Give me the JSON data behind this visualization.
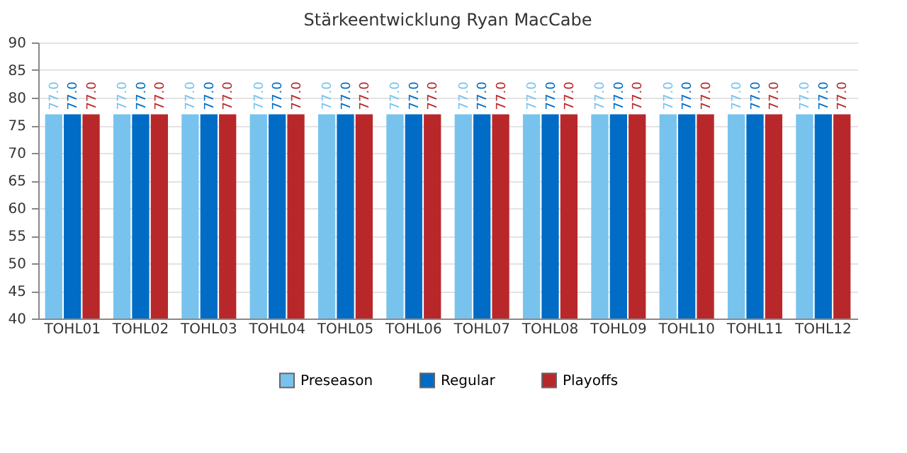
{
  "chart_data": {
    "type": "bar",
    "title": "Stärkeentwicklung Ryan MacCabe",
    "categories": [
      "TOHL01",
      "TOHL02",
      "TOHL03",
      "TOHL04",
      "TOHL05",
      "TOHL06",
      "TOHL07",
      "TOHL08",
      "TOHL09",
      "TOHL10",
      "TOHL11",
      "TOHL12"
    ],
    "series": [
      {
        "name": "Preseason",
        "color": "#77c3ee",
        "values": [
          77,
          77,
          77,
          77,
          77,
          77,
          77,
          77,
          77,
          77,
          77,
          77
        ],
        "value_labels": [
          "77.0",
          "77.0",
          "77.0",
          "77.0",
          "77.0",
          "77.0",
          "77.0",
          "77.0",
          "77.0",
          "77.0",
          "77.0",
          "77.0"
        ]
      },
      {
        "name": "Regular",
        "color": "#006cc6",
        "values": [
          77,
          77,
          77,
          77,
          77,
          77,
          77,
          77,
          77,
          77,
          77,
          77
        ],
        "value_labels": [
          "77.0",
          "77.0",
          "77.0",
          "77.0",
          "77.0",
          "77.0",
          "77.0",
          "77.0",
          "77.0",
          "77.0",
          "77.0",
          "77.0"
        ]
      },
      {
        "name": "Playoffs",
        "color": "#b8282a",
        "values": [
          77,
          77,
          77,
          77,
          77,
          77,
          77,
          77,
          77,
          77,
          77,
          77
        ],
        "value_labels": [
          "77.0",
          "77.0",
          "77.0",
          "77.0",
          "77.0",
          "77.0",
          "77.0",
          "77.0",
          "77.0",
          "77.0",
          "77.0",
          "77.0"
        ]
      }
    ],
    "ylim": [
      40,
      90
    ],
    "yticks": [
      40,
      45,
      50,
      55,
      60,
      65,
      70,
      75,
      80,
      85,
      90
    ],
    "grid": "y",
    "legend": "bottom"
  }
}
